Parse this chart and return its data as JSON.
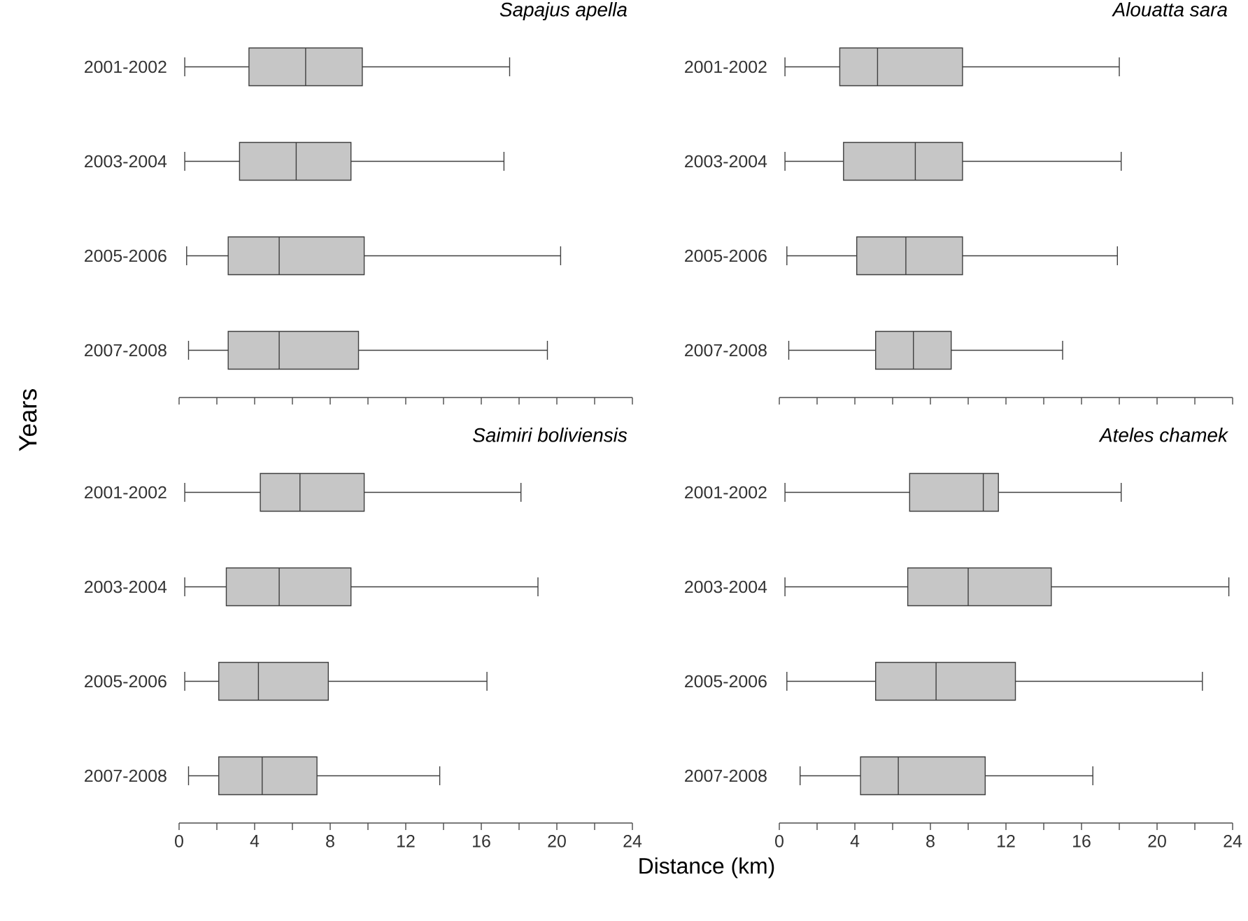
{
  "chart_data": [
    {
      "type": "box",
      "orientation": "horizontal",
      "title": "Sapajus apella",
      "ylabel": "Years",
      "categories": [
        "2001-2002",
        "2003-2004",
        "2005-2006",
        "2007-2008"
      ],
      "color": "#c6c6c6",
      "xlim": [
        0,
        24
      ],
      "xticks": [
        0,
        2,
        4,
        6,
        8,
        10,
        12,
        14,
        16,
        18,
        20,
        22,
        24
      ],
      "tick_labels": "y",
      "boxes": [
        {
          "low": 0.3,
          "q1": 3.7,
          "median": 6.7,
          "q3": 9.7,
          "high": 17.5
        },
        {
          "low": 0.3,
          "q1": 3.2,
          "median": 6.2,
          "q3": 9.1,
          "high": 17.2
        },
        {
          "low": 0.4,
          "q1": 2.6,
          "median": 5.3,
          "q3": 9.8,
          "high": 20.2
        },
        {
          "low": 0.5,
          "q1": 2.6,
          "median": 5.3,
          "q3": 9.5,
          "high": 19.5
        }
      ]
    },
    {
      "type": "box",
      "orientation": "horizontal",
      "title": "Alouatta sara",
      "categories": [
        "2001-2002",
        "2003-2004",
        "2005-2006",
        "2007-2008"
      ],
      "color": "#c6c6c6",
      "xlim": [
        0,
        24
      ],
      "xticks": [
        0,
        2,
        4,
        6,
        8,
        10,
        12,
        14,
        16,
        18,
        20,
        22,
        24
      ],
      "tick_labels": "y",
      "boxes": [
        {
          "low": 0.3,
          "q1": 3.2,
          "median": 5.2,
          "q3": 9.7,
          "high": 18.0
        },
        {
          "low": 0.3,
          "q1": 3.4,
          "median": 7.2,
          "q3": 9.7,
          "high": 18.1
        },
        {
          "low": 0.4,
          "q1": 4.1,
          "median": 6.7,
          "q3": 9.7,
          "high": 17.9
        },
        {
          "low": 0.5,
          "q1": 5.1,
          "median": 7.1,
          "q3": 9.1,
          "high": 15.0
        }
      ]
    },
    {
      "type": "box",
      "orientation": "horizontal",
      "title": "Saimiri boliviensis",
      "xlabel": "Distance (km)",
      "categories": [
        "2001-2002",
        "2003-2004",
        "2005-2006",
        "2007-2008"
      ],
      "color": "#c6c6c6",
      "xlim": [
        0,
        24
      ],
      "xticks": [
        0,
        {
          "value": 2,
          "label": null
        },
        4,
        {
          "value": 6,
          "label": null
        },
        8,
        {
          "value": 10,
          "label": null
        },
        12,
        {
          "value": 14,
          "label": null
        },
        16,
        {
          "value": 18,
          "label": null
        },
        20,
        {
          "value": 22,
          "label": null
        },
        24
      ],
      "boxes": [
        {
          "low": 0.3,
          "q1": 4.3,
          "median": 6.4,
          "q3": 9.8,
          "high": 18.1
        },
        {
          "low": 0.3,
          "q1": 2.5,
          "median": 5.3,
          "q3": 9.1,
          "high": 19.0
        },
        {
          "low": 0.3,
          "q1": 2.1,
          "median": 4.2,
          "q3": 7.9,
          "high": 16.3
        },
        {
          "low": 0.5,
          "q1": 2.1,
          "median": 4.4,
          "q3": 7.3,
          "high": 13.8
        }
      ]
    },
    {
      "type": "box",
      "orientation": "horizontal",
      "title": "Ateles chamek",
      "categories": [
        "2001-2002",
        "2003-2004",
        "2005-2006",
        "2007-2008"
      ],
      "color": "#c6c6c6",
      "xlim": [
        0,
        24
      ],
      "xticks": [
        0,
        {
          "value": 2,
          "label": null
        },
        4,
        {
          "value": 6,
          "label": null
        },
        8,
        {
          "value": 10,
          "label": null
        },
        12,
        {
          "value": 14,
          "label": null
        },
        16,
        {
          "value": 18,
          "label": null
        },
        20,
        {
          "value": 22,
          "label": null
        },
        24
      ],
      "boxes": [
        {
          "low": 0.3,
          "q1": 6.9,
          "median": 10.8,
          "q3": 11.6,
          "high": 18.1
        },
        {
          "low": 0.3,
          "q1": 6.8,
          "median": 10.0,
          "q3": 14.4,
          "high": 23.8
        },
        {
          "low": 0.4,
          "q1": 5.1,
          "median": 8.3,
          "q3": 12.5,
          "high": 22.4
        },
        {
          "low": 1.1,
          "q1": 4.3,
          "median": 6.3,
          "q3": 10.9,
          "high": 16.6
        }
      ]
    }
  ]
}
